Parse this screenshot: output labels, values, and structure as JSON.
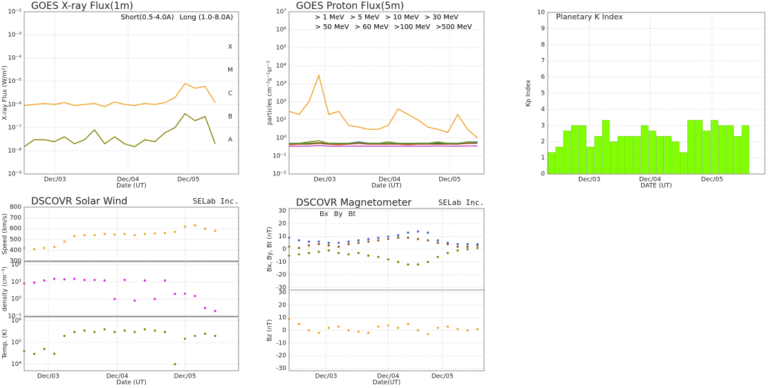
{
  "chart_data": [
    {
      "type": "line",
      "title": "GOES X-ray Flux(1m)",
      "xlabel": "Date (UT)",
      "ylabel": "X-ray Flux (W/m²)",
      "ylog": true,
      "grid": true,
      "legend": "upper right",
      "xlim": [
        0,
        3.2
      ],
      "xticks": [
        {
          "value": 0.46,
          "label": "Dec/03"
        },
        {
          "value": 1.55,
          "label": "Dec/04"
        },
        {
          "value": 2.45,
          "label": "Dec/05"
        }
      ],
      "ylim": [
        1e-09,
        0.01
      ],
      "yticks": [
        {
          "value": 1e-09,
          "label": "10⁻⁹"
        },
        {
          "value": 1e-08,
          "label": "10⁻⁸"
        },
        {
          "value": 1e-07,
          "label": "10⁻⁷"
        },
        {
          "value": 1e-06,
          "label": "10⁻⁶"
        },
        {
          "value": 1e-05,
          "label": "10⁻⁵"
        },
        {
          "value": 0.0001,
          "label": "10⁻⁴"
        },
        {
          "value": 0.001,
          "label": "10⁻³"
        },
        {
          "value": 0.01,
          "label": "10⁻²"
        }
      ],
      "annotations": [
        {
          "text": "A",
          "value": 3e-08
        },
        {
          "text": "B",
          "value": 3e-07
        },
        {
          "text": "C",
          "value": 3e-06
        },
        {
          "text": "M",
          "value": 3e-05
        },
        {
          "text": "X",
          "value": 0.0003
        }
      ],
      "x": [
        0,
        0.15,
        0.3,
        0.45,
        0.6,
        0.75,
        0.9,
        1.05,
        1.2,
        1.35,
        1.5,
        1.65,
        1.8,
        1.95,
        2.1,
        2.25,
        2.4,
        2.55,
        2.7,
        2.85
      ],
      "series": [
        {
          "name": "Short(0.5-4.0A)",
          "color": "#808000",
          "values": [
            1.5e-08,
            3e-08,
            3e-08,
            2.5e-08,
            4e-08,
            2e-08,
            3e-08,
            8e-08,
            2e-08,
            4e-08,
            2e-08,
            1.5e-08,
            3e-08,
            2.5e-08,
            6e-08,
            1e-07,
            4e-07,
            2e-07,
            3e-07,
            2e-08
          ]
        },
        {
          "name": "Long (1.0-8.0A)",
          "color": "#f0a020",
          "values": [
            9e-07,
            1e-06,
            1.1e-06,
            1e-06,
            1.2e-06,
            9e-07,
            1e-06,
            1.1e-06,
            8e-07,
            1.3e-06,
            1e-06,
            9e-07,
            1.1e-06,
            1e-06,
            1.2e-06,
            2e-06,
            8e-06,
            5e-06,
            6e-06,
            1.2e-06
          ]
        }
      ]
    },
    {
      "type": "line",
      "title": "GOES Proton Flux(5m)",
      "xlabel": "Date (UT)",
      "ylabel": "particles cm⁻²s⁻¹sr⁻¹",
      "ylog": true,
      "grid": true,
      "legend": "upper center",
      "xlim": [
        0,
        2.95
      ],
      "xticks": [
        {
          "value": 0.54,
          "label": "Dec/03"
        },
        {
          "value": 1.52,
          "label": "Dec/04"
        },
        {
          "value": 2.43,
          "label": "Dec/05"
        }
      ],
      "ylim": [
        0.01,
        10000000.0
      ],
      "yticks": [
        {
          "value": 0.01,
          "label": "10⁻²"
        },
        {
          "value": 0.1,
          "label": "10⁻¹"
        },
        {
          "value": 1,
          "label": "10⁰"
        },
        {
          "value": 10,
          "label": "10¹"
        },
        {
          "value": 100,
          "label": "10²"
        },
        {
          "value": 1000,
          "label": "10³"
        },
        {
          "value": 10000,
          "label": "10⁴"
        },
        {
          "value": 100000,
          "label": "10⁵"
        },
        {
          "value": 1000000,
          "label": "10⁶"
        },
        {
          "value": 10000000,
          "label": "10⁷"
        }
      ],
      "x": [
        0,
        0.15,
        0.3,
        0.45,
        0.6,
        0.75,
        0.9,
        1.05,
        1.2,
        1.35,
        1.5,
        1.65,
        1.8,
        1.95,
        2.1,
        2.25,
        2.4,
        2.55,
        2.7,
        2.85
      ],
      "series": [
        {
          "name": "> 1 MeV",
          "color": "#f0a020",
          "values": [
            30,
            20,
            100,
            3000,
            20,
            30,
            5,
            4,
            3,
            3,
            5,
            40,
            20,
            10,
            4,
            3,
            2,
            20,
            3,
            1
          ]
        },
        {
          "name": "> 5 MeV",
          "color": "#808000",
          "values": [
            0.5,
            0.5,
            0.6,
            0.7,
            0.5,
            0.5,
            0.5,
            0.6,
            0.5,
            0.5,
            0.6,
            0.5,
            0.5,
            0.5,
            0.5,
            0.6,
            0.5,
            0.5,
            0.6,
            0.6
          ]
        },
        {
          "name": "> 10 MeV",
          "color": "#4060d0",
          "values": [
            0.45,
            0.5,
            0.5,
            0.55,
            0.5,
            0.45,
            0.5,
            0.6,
            0.5,
            0.5,
            0.5,
            0.5,
            0.45,
            0.5,
            0.5,
            0.5,
            0.5,
            0.5,
            0.55,
            0.6
          ]
        },
        {
          "name": "> 30 MeV",
          "color": "#e8b070",
          "values": [
            0.4,
            0.45,
            0.45,
            0.5,
            0.45,
            0.4,
            0.45,
            0.5,
            0.45,
            0.45,
            0.45,
            0.45,
            0.4,
            0.45,
            0.45,
            0.45,
            0.45,
            0.45,
            0.5,
            0.5
          ]
        },
        {
          "name": "> 50 MeV",
          "color": "#204848",
          "values": [
            0.45,
            0.5,
            0.5,
            0.5,
            0.45,
            0.45,
            0.5,
            0.55,
            0.5,
            0.45,
            0.5,
            0.5,
            0.45,
            0.5,
            0.5,
            0.5,
            0.45,
            0.5,
            0.5,
            0.55
          ]
        },
        {
          "name": "> 60 MeV",
          "color": "#40b040",
          "values": [
            0.5,
            0.5,
            0.5,
            0.55,
            0.5,
            0.5,
            0.5,
            0.55,
            0.5,
            0.5,
            0.5,
            0.5,
            0.5,
            0.5,
            0.5,
            0.55,
            0.5,
            0.5,
            0.55,
            0.55
          ]
        },
        {
          "name": ">100 MeV",
          "color": "#a04010",
          "values": [
            0.45,
            0.45,
            0.45,
            0.5,
            0.45,
            0.45,
            0.45,
            0.5,
            0.45,
            0.45,
            0.45,
            0.45,
            0.45,
            0.45,
            0.45,
            0.45,
            0.45,
            0.45,
            0.5,
            0.5
          ]
        },
        {
          "name": ">500 MeV",
          "color": "#c040c0",
          "values": [
            0.35,
            0.35,
            0.35,
            0.38,
            0.35,
            0.35,
            0.35,
            0.36,
            0.35,
            0.35,
            0.35,
            0.35,
            0.35,
            0.35,
            0.35,
            0.36,
            0.35,
            0.35,
            0.36,
            0.36
          ]
        }
      ]
    },
    {
      "type": "bar",
      "title": "Planetary K Index",
      "xlabel": "DATE (UT)",
      "ylabel": "Kp Index",
      "grid": true,
      "color": "#80ff00",
      "xlim": [
        0,
        3.5
      ],
      "xticks": [
        {
          "value": 0.67,
          "label": "Dec/03"
        },
        {
          "value": 1.65,
          "label": "Dec/04"
        },
        {
          "value": 2.65,
          "label": "Dec/05"
        }
      ],
      "ylim": [
        0,
        10
      ],
      "yticks": [
        0,
        1,
        2,
        3,
        4,
        5,
        6,
        7,
        8,
        9,
        10
      ],
      "x": [
        0.0625,
        0.1875,
        0.3125,
        0.4375,
        0.5625,
        0.6875,
        0.8125,
        0.9375,
        1.0625,
        1.1875,
        1.3125,
        1.4375,
        1.5625,
        1.6875,
        1.8125,
        1.9375,
        2.0625,
        2.1875,
        2.3125,
        2.4375,
        2.5625,
        2.6875,
        2.8125,
        2.9375,
        3.0625,
        3.1875
      ],
      "values": [
        1.33,
        1.67,
        2.67,
        3,
        3,
        1.67,
        2.33,
        3.33,
        2,
        2.33,
        2.33,
        2.33,
        3,
        2.67,
        2.33,
        2.33,
        2,
        1.33,
        3.33,
        3.33,
        2.67,
        3.33,
        3,
        3,
        2.33,
        3
      ]
    },
    {
      "type": "scatter",
      "title": "DSCOVR Solar Wind",
      "credit": "SELab Inc.",
      "xlabel": "Date (UT)",
      "grid": true,
      "xlim": [
        0,
        3.2
      ],
      "xticks": [
        {
          "value": 0.36,
          "label": "Dec/03"
        },
        {
          "value": 1.39,
          "label": "Dec/04"
        },
        {
          "value": 2.4,
          "label": "Dec/05"
        }
      ],
      "x": [
        0,
        0.15,
        0.3,
        0.45,
        0.6,
        0.75,
        0.9,
        1.05,
        1.2,
        1.35,
        1.5,
        1.65,
        1.8,
        1.95,
        2.1,
        2.25,
        2.4,
        2.55,
        2.7,
        2.85
      ],
      "panels": [
        {
          "ylabel": "Speed (km/s)",
          "ylim": [
            300,
            800
          ],
          "yticks": [
            300,
            400,
            500,
            600,
            700,
            800
          ],
          "series": [
            {
              "color": "#f0a020",
              "values": [
                420,
                410,
                420,
                430,
                480,
                530,
                540,
                540,
                550,
                545,
                550,
                540,
                550,
                555,
                560,
                570,
                620,
                630,
                600,
                580
              ]
            }
          ]
        },
        {
          "ylabel": "density (cm⁻³)",
          "ylog": true,
          "ylim": [
            0.1,
            150
          ],
          "yticks": [
            {
              "value": 0.1,
              "label": "10⁻¹"
            },
            {
              "value": 1,
              "label": "10⁰"
            },
            {
              "value": 10,
              "label": "10¹"
            },
            {
              "value": 100,
              "label": "10²"
            }
          ],
          "series": [
            {
              "color": "#e020e0",
              "values": [
                8,
                9,
                12,
                15,
                14,
                15,
                13,
                13,
                12,
                1,
                13,
                0.8,
                12,
                1,
                12,
                2,
                2,
                1.5,
                0.3,
                0.2
              ]
            }
          ]
        },
        {
          "ylabel": "Temp. (K)",
          "ylog": true,
          "ylim": [
            5000,
            1500000
          ],
          "yticks": [
            {
              "value": 10000,
              "label": "10⁴"
            },
            {
              "value": 100000,
              "label": "10⁵"
            },
            {
              "value": 1000000,
              "label": "10⁶"
            }
          ],
          "series": [
            {
              "color": "#808000",
              "values": [
                40000,
                30000,
                50000,
                30000,
                200000,
                300000,
                350000,
                300000,
                400000,
                300000,
                350000,
                300000,
                400000,
                350000,
                300000,
                10000,
                150000,
                200000,
                250000,
                200000
              ]
            }
          ]
        }
      ]
    },
    {
      "type": "scatter",
      "title": "DSCOVR Magnetometer",
      "credit": "SELab Inc.",
      "xlabel": "Date(UT)",
      "grid": true,
      "xlim": [
        0,
        2.95
      ],
      "xticks": [
        {
          "value": 0.56,
          "label": "Dec/03"
        },
        {
          "value": 1.5,
          "label": "Dec/04"
        },
        {
          "value": 2.32,
          "label": "Dec/05"
        }
      ],
      "x": [
        0,
        0.15,
        0.3,
        0.45,
        0.6,
        0.75,
        0.9,
        1.05,
        1.2,
        1.35,
        1.5,
        1.65,
        1.8,
        1.95,
        2.1,
        2.25,
        2.4,
        2.55,
        2.7,
        2.85
      ],
      "panels": [
        {
          "ylabel": "Bx, By, Bt (nT)",
          "legend": "upper left",
          "ylim": [
            -32,
            32
          ],
          "yticks": [
            -30,
            -20,
            -10,
            0,
            10,
            20,
            30
          ],
          "series": [
            {
              "name": "Bx",
              "color": "#a05020",
              "values": [
                2,
                1,
                3,
                4,
                3,
                2,
                4,
                5,
                6,
                7,
                8,
                9,
                9,
                8,
                7,
                5,
                4,
                2,
                2,
                3
              ]
            },
            {
              "name": "By",
              "color": "#808000",
              "values": [
                -5,
                -4,
                -3,
                -2,
                -1,
                -3,
                -4,
                -3,
                -5,
                -6,
                -8,
                -10,
                -12,
                -12,
                -10,
                -6,
                -3,
                -1,
                0,
                1
              ]
            },
            {
              "name": "Bt",
              "color": "#4060d0",
              "values": [
                9,
                7,
                6,
                6,
                5,
                5,
                6,
                7,
                8,
                9,
                10,
                11,
                13,
                14,
                13,
                7,
                5,
                4,
                4,
                4
              ]
            }
          ]
        },
        {
          "ylabel": "Bz (nT)",
          "ylim": [
            -32,
            32
          ],
          "yticks": [
            -30,
            -20,
            -10,
            0,
            10,
            20,
            30
          ],
          "series": [
            {
              "color": "#f0a020",
              "values": [
                9,
                5,
                0,
                -2,
                2,
                3,
                0,
                -1,
                -2,
                3,
                4,
                2,
                5,
                0,
                -3,
                2,
                3,
                1,
                0,
                1
              ]
            }
          ]
        }
      ]
    }
  ]
}
